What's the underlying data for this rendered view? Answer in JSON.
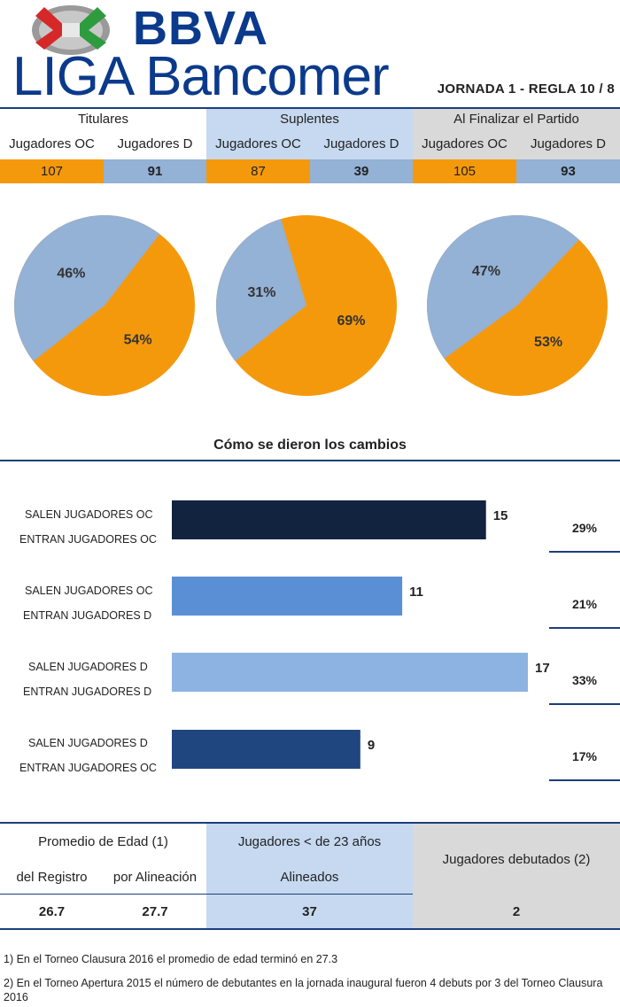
{
  "header": {
    "logo_bbva": "BBVA",
    "logo_liga": "LIGA Bancomer",
    "jornada": "JORNADA 1 - REGLA 10 / 8"
  },
  "colors": {
    "oc": "#f5990c",
    "d": "#94b1d6",
    "rule": "#1c3e7a",
    "suplentes_bg": "#c6d9f0",
    "final_bg": "#d9d9d9",
    "bar1": "#12233f",
    "bar2": "#5a8fd6",
    "bar3": "#8db3e2",
    "bar4": "#1f467e"
  },
  "top_table": {
    "groups": [
      {
        "title": "Titulares",
        "oc_label": "Jugadores OC",
        "d_label": "Jugadores D",
        "oc_value": "107",
        "d_value": "91"
      },
      {
        "title": "Suplentes",
        "oc_label": "Jugadores OC",
        "d_label": "Jugadores D",
        "oc_value": "87",
        "d_value": "39"
      },
      {
        "title": "Al Finalizar el Partido",
        "oc_label": "Jugadores OC",
        "d_label": "Jugadores D",
        "oc_value": "105",
        "d_value": "93"
      }
    ]
  },
  "changes": {
    "title": "Cómo se dieron los cambios",
    "rows": [
      {
        "line1": "SALEN JUGADORES OC",
        "line2": "ENTRAN JUGADORES OC",
        "pct": "29%"
      },
      {
        "line1": "SALEN JUGADORES OC",
        "line2": "ENTRAN JUGADORES D",
        "pct": "21%"
      },
      {
        "line1": "SALEN JUGADORES D",
        "line2": "ENTRAN JUGADORES D",
        "pct": "33%"
      },
      {
        "line1": "SALEN JUGADORES D",
        "line2": "ENTRAN JUGADORES OC",
        "pct": "17%"
      }
    ]
  },
  "bottom_table": {
    "edad_title": "Promedio de Edad (1)",
    "registro_label": "del Registro",
    "alineacion_label": "por Alineación",
    "menores_title": "Jugadores < de 23 años",
    "alineados_label": "Alineados",
    "debutados_title": "Jugadores debutados (2)",
    "registro_value": "26.7",
    "alineacion_value": "27.7",
    "alineados_value": "37",
    "debutados_value": "2"
  },
  "footnotes": [
    "1) En el Torneo Clausura 2016 el promedio de edad terminó en 27.3",
    "2) En el Torneo Apertura 2015 el número de debutantes en la jornada inaugural fueron 4 debuts por 3 del Torneo Clausura 2016"
  ],
  "chart_data": [
    {
      "type": "pie",
      "labels": [
        "54%",
        "46%"
      ],
      "values": [
        54,
        46
      ],
      "colors": [
        "#f5990c",
        "#94b1d6"
      ]
    },
    {
      "type": "pie",
      "labels": [
        "69%",
        "31%"
      ],
      "values": [
        69,
        31
      ],
      "colors": [
        "#f5990c",
        "#94b1d6"
      ]
    },
    {
      "type": "pie",
      "labels": [
        "53%",
        "47%"
      ],
      "values": [
        53,
        47
      ],
      "colors": [
        "#f5990c",
        "#94b1d6"
      ]
    },
    {
      "type": "bar",
      "orientation": "horizontal",
      "categories": [
        "SALEN JUGADORES OC ENTRAN JUGADORES OC",
        "SALEN JUGADORES OC ENTRAN JUGADORES D",
        "SALEN JUGADORES D ENTRAN JUGADORES D",
        "SALEN JUGADORES D ENTRAN JUGADORES OC"
      ],
      "values": [
        15,
        11,
        17,
        9
      ],
      "value_labels": [
        "15",
        "11",
        "17",
        "9"
      ],
      "colors": [
        "#12233f",
        "#5a8fd6",
        "#8db3e2",
        "#1f467e"
      ],
      "xlim": [
        0,
        17
      ]
    }
  ]
}
